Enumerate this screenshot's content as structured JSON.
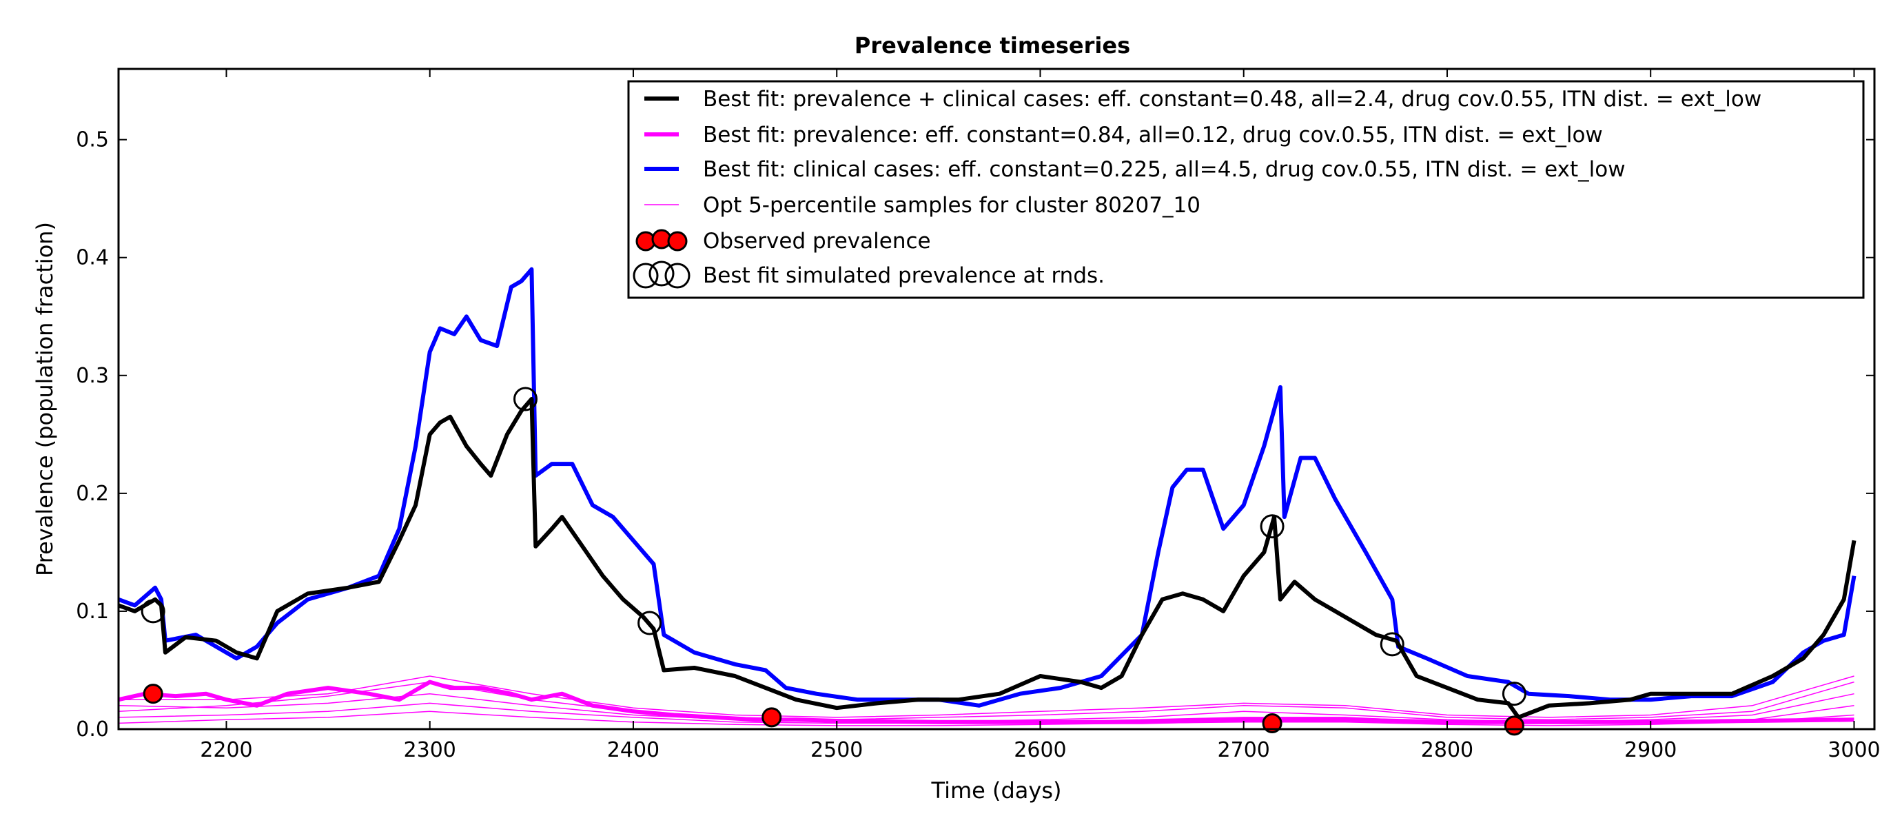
{
  "chart_data": {
    "type": "line",
    "title": "Prevalence timeseries",
    "xlabel": "Time (days)",
    "ylabel": "Prevalence (population fraction)",
    "xlim": [
      2147,
      3010
    ],
    "ylim": [
      0.0,
      0.56
    ],
    "xticks": [
      2200,
      2300,
      2400,
      2500,
      2600,
      2700,
      2800,
      2900,
      3000
    ],
    "yticks": [
      0.0,
      0.1,
      0.2,
      0.3,
      0.4,
      0.5
    ],
    "xtick_labels": [
      "2200",
      "2300",
      "2400",
      "2500",
      "2600",
      "2700",
      "2800",
      "2900",
      "3000"
    ],
    "ytick_labels": [
      "0.0",
      "0.1",
      "0.2",
      "0.3",
      "0.4",
      "0.5"
    ],
    "grid": false,
    "legend_position": "top-right",
    "series": [
      {
        "name": "Best fit: prevalence + clinical cases: eff. constant=0.48, all=2.4, drug cov.0.55, ITN dist. = ext_low",
        "color": "#000000",
        "style": "thick-line",
        "points": [
          [
            2147,
            0.105
          ],
          [
            2155,
            0.1
          ],
          [
            2165,
            0.11
          ],
          [
            2168,
            0.105
          ],
          [
            2170,
            0.065
          ],
          [
            2180,
            0.078
          ],
          [
            2195,
            0.075
          ],
          [
            2205,
            0.065
          ],
          [
            2215,
            0.06
          ],
          [
            2225,
            0.1
          ],
          [
            2240,
            0.115
          ],
          [
            2260,
            0.12
          ],
          [
            2275,
            0.125
          ],
          [
            2285,
            0.16
          ],
          [
            2293,
            0.19
          ],
          [
            2300,
            0.25
          ],
          [
            2305,
            0.26
          ],
          [
            2310,
            0.265
          ],
          [
            2318,
            0.24
          ],
          [
            2325,
            0.225
          ],
          [
            2330,
            0.215
          ],
          [
            2338,
            0.25
          ],
          [
            2345,
            0.27
          ],
          [
            2350,
            0.28
          ],
          [
            2352,
            0.155
          ],
          [
            2360,
            0.17
          ],
          [
            2365,
            0.18
          ],
          [
            2375,
            0.155
          ],
          [
            2385,
            0.13
          ],
          [
            2395,
            0.11
          ],
          [
            2405,
            0.095
          ],
          [
            2410,
            0.085
          ],
          [
            2415,
            0.05
          ],
          [
            2430,
            0.052
          ],
          [
            2450,
            0.045
          ],
          [
            2465,
            0.035
          ],
          [
            2480,
            0.025
          ],
          [
            2500,
            0.018
          ],
          [
            2520,
            0.022
          ],
          [
            2540,
            0.025
          ],
          [
            2560,
            0.025
          ],
          [
            2580,
            0.03
          ],
          [
            2600,
            0.045
          ],
          [
            2620,
            0.04
          ],
          [
            2630,
            0.035
          ],
          [
            2640,
            0.045
          ],
          [
            2650,
            0.08
          ],
          [
            2660,
            0.11
          ],
          [
            2670,
            0.115
          ],
          [
            2680,
            0.11
          ],
          [
            2690,
            0.1
          ],
          [
            2700,
            0.13
          ],
          [
            2710,
            0.15
          ],
          [
            2715,
            0.18
          ],
          [
            2718,
            0.11
          ],
          [
            2725,
            0.125
          ],
          [
            2735,
            0.11
          ],
          [
            2745,
            0.1
          ],
          [
            2755,
            0.09
          ],
          [
            2765,
            0.08
          ],
          [
            2775,
            0.075
          ],
          [
            2785,
            0.045
          ],
          [
            2800,
            0.035
          ],
          [
            2815,
            0.025
          ],
          [
            2830,
            0.022
          ],
          [
            2835,
            0.01
          ],
          [
            2850,
            0.02
          ],
          [
            2870,
            0.022
          ],
          [
            2890,
            0.025
          ],
          [
            2900,
            0.03
          ],
          [
            2920,
            0.03
          ],
          [
            2940,
            0.03
          ],
          [
            2960,
            0.045
          ],
          [
            2975,
            0.06
          ],
          [
            2985,
            0.08
          ],
          [
            2995,
            0.11
          ],
          [
            3000,
            0.16
          ]
        ]
      },
      {
        "name": "Best fit: prevalence: eff. constant=0.84, all=0.12, drug cov.0.55, ITN dist. = ext_low",
        "color": "#ff00ff",
        "style": "thick-line",
        "points": [
          [
            2147,
            0.025
          ],
          [
            2160,
            0.03
          ],
          [
            2175,
            0.028
          ],
          [
            2190,
            0.03
          ],
          [
            2200,
            0.025
          ],
          [
            2215,
            0.02
          ],
          [
            2230,
            0.03
          ],
          [
            2250,
            0.035
          ],
          [
            2270,
            0.03
          ],
          [
            2285,
            0.025
          ],
          [
            2300,
            0.04
          ],
          [
            2310,
            0.035
          ],
          [
            2325,
            0.035
          ],
          [
            2340,
            0.03
          ],
          [
            2350,
            0.025
          ],
          [
            2365,
            0.03
          ],
          [
            2380,
            0.02
          ],
          [
            2400,
            0.015
          ],
          [
            2420,
            0.012
          ],
          [
            2440,
            0.01
          ],
          [
            2460,
            0.008
          ],
          [
            2480,
            0.008
          ],
          [
            2500,
            0.007
          ],
          [
            2550,
            0.006
          ],
          [
            2600,
            0.006
          ],
          [
            2650,
            0.006
          ],
          [
            2700,
            0.008
          ],
          [
            2750,
            0.008
          ],
          [
            2800,
            0.006
          ],
          [
            2850,
            0.006
          ],
          [
            2900,
            0.006
          ],
          [
            2950,
            0.007
          ],
          [
            3000,
            0.008
          ]
        ]
      },
      {
        "name": "Best fit: clinical cases: eff. constant=0.225, all=4.5, drug cov.0.55, ITN dist. = ext_low",
        "color": "#0000ff",
        "style": "thick-line",
        "points": [
          [
            2147,
            0.11
          ],
          [
            2155,
            0.105
          ],
          [
            2165,
            0.12
          ],
          [
            2168,
            0.11
          ],
          [
            2170,
            0.075
          ],
          [
            2185,
            0.08
          ],
          [
            2195,
            0.07
          ],
          [
            2205,
            0.06
          ],
          [
            2215,
            0.07
          ],
          [
            2225,
            0.09
          ],
          [
            2240,
            0.11
          ],
          [
            2260,
            0.12
          ],
          [
            2275,
            0.13
          ],
          [
            2285,
            0.17
          ],
          [
            2293,
            0.24
          ],
          [
            2300,
            0.32
          ],
          [
            2305,
            0.34
          ],
          [
            2312,
            0.335
          ],
          [
            2318,
            0.35
          ],
          [
            2325,
            0.33
          ],
          [
            2333,
            0.325
          ],
          [
            2340,
            0.375
          ],
          [
            2345,
            0.38
          ],
          [
            2350,
            0.39
          ],
          [
            2352,
            0.215
          ],
          [
            2360,
            0.225
          ],
          [
            2370,
            0.225
          ],
          [
            2380,
            0.19
          ],
          [
            2390,
            0.18
          ],
          [
            2400,
            0.16
          ],
          [
            2410,
            0.14
          ],
          [
            2415,
            0.08
          ],
          [
            2430,
            0.065
          ],
          [
            2450,
            0.055
          ],
          [
            2465,
            0.05
          ],
          [
            2475,
            0.035
          ],
          [
            2490,
            0.03
          ],
          [
            2510,
            0.025
          ],
          [
            2530,
            0.025
          ],
          [
            2550,
            0.025
          ],
          [
            2570,
            0.02
          ],
          [
            2590,
            0.03
          ],
          [
            2610,
            0.035
          ],
          [
            2630,
            0.045
          ],
          [
            2650,
            0.08
          ],
          [
            2658,
            0.15
          ],
          [
            2665,
            0.205
          ],
          [
            2672,
            0.22
          ],
          [
            2680,
            0.22
          ],
          [
            2690,
            0.17
          ],
          [
            2700,
            0.19
          ],
          [
            2710,
            0.24
          ],
          [
            2718,
            0.29
          ],
          [
            2720,
            0.18
          ],
          [
            2728,
            0.23
          ],
          [
            2735,
            0.23
          ],
          [
            2745,
            0.195
          ],
          [
            2760,
            0.15
          ],
          [
            2773,
            0.11
          ],
          [
            2776,
            0.07
          ],
          [
            2790,
            0.06
          ],
          [
            2810,
            0.045
          ],
          [
            2830,
            0.04
          ],
          [
            2840,
            0.03
          ],
          [
            2860,
            0.028
          ],
          [
            2880,
            0.025
          ],
          [
            2900,
            0.025
          ],
          [
            2920,
            0.028
          ],
          [
            2940,
            0.028
          ],
          [
            2960,
            0.04
          ],
          [
            2975,
            0.065
          ],
          [
            2985,
            0.075
          ],
          [
            2995,
            0.08
          ],
          [
            3000,
            0.13
          ]
        ]
      }
    ],
    "samples": {
      "name": "Opt 5-percentile samples for cluster 80207_10",
      "color": "#ff00ff",
      "style": "thin-lines",
      "lines": [
        [
          [
            2147,
            0.02
          ],
          [
            2200,
            0.018
          ],
          [
            2250,
            0.022
          ],
          [
            2300,
            0.03
          ],
          [
            2350,
            0.02
          ],
          [
            2400,
            0.012
          ],
          [
            2450,
            0.008
          ],
          [
            2500,
            0.006
          ],
          [
            2550,
            0.006
          ],
          [
            2600,
            0.008
          ],
          [
            2650,
            0.01
          ],
          [
            2700,
            0.015
          ],
          [
            2750,
            0.012
          ],
          [
            2800,
            0.008
          ],
          [
            2850,
            0.006
          ],
          [
            2900,
            0.008
          ],
          [
            2950,
            0.012
          ],
          [
            3000,
            0.03
          ]
        ],
        [
          [
            2147,
            0.015
          ],
          [
            2200,
            0.02
          ],
          [
            2250,
            0.028
          ],
          [
            2300,
            0.04
          ],
          [
            2350,
            0.025
          ],
          [
            2400,
            0.015
          ],
          [
            2450,
            0.01
          ],
          [
            2500,
            0.008
          ],
          [
            2550,
            0.01
          ],
          [
            2600,
            0.012
          ],
          [
            2650,
            0.015
          ],
          [
            2700,
            0.02
          ],
          [
            2750,
            0.018
          ],
          [
            2800,
            0.01
          ],
          [
            2850,
            0.008
          ],
          [
            2900,
            0.01
          ],
          [
            2950,
            0.015
          ],
          [
            3000,
            0.04
          ]
        ],
        [
          [
            2147,
            0.01
          ],
          [
            2200,
            0.012
          ],
          [
            2250,
            0.015
          ],
          [
            2300,
            0.022
          ],
          [
            2350,
            0.015
          ],
          [
            2400,
            0.01
          ],
          [
            2450,
            0.006
          ],
          [
            2500,
            0.005
          ],
          [
            2550,
            0.005
          ],
          [
            2600,
            0.006
          ],
          [
            2650,
            0.008
          ],
          [
            2700,
            0.01
          ],
          [
            2750,
            0.01
          ],
          [
            2800,
            0.006
          ],
          [
            2850,
            0.005
          ],
          [
            2900,
            0.006
          ],
          [
            2950,
            0.008
          ],
          [
            3000,
            0.02
          ]
        ],
        [
          [
            2147,
            0.025
          ],
          [
            2200,
            0.025
          ],
          [
            2250,
            0.03
          ],
          [
            2300,
            0.045
          ],
          [
            2350,
            0.03
          ],
          [
            2400,
            0.018
          ],
          [
            2450,
            0.012
          ],
          [
            2500,
            0.01
          ],
          [
            2550,
            0.012
          ],
          [
            2600,
            0.015
          ],
          [
            2650,
            0.018
          ],
          [
            2700,
            0.022
          ],
          [
            2750,
            0.02
          ],
          [
            2800,
            0.012
          ],
          [
            2850,
            0.01
          ],
          [
            2900,
            0.012
          ],
          [
            2950,
            0.02
          ],
          [
            3000,
            0.045
          ]
        ],
        [
          [
            2147,
            0.005
          ],
          [
            2200,
            0.008
          ],
          [
            2250,
            0.01
          ],
          [
            2300,
            0.015
          ],
          [
            2350,
            0.01
          ],
          [
            2400,
            0.006
          ],
          [
            2450,
            0.004
          ],
          [
            2500,
            0.003
          ],
          [
            2550,
            0.003
          ],
          [
            2600,
            0.004
          ],
          [
            2650,
            0.005
          ],
          [
            2700,
            0.006
          ],
          [
            2750,
            0.006
          ],
          [
            2800,
            0.004
          ],
          [
            2850,
            0.003
          ],
          [
            2900,
            0.004
          ],
          [
            2950,
            0.006
          ],
          [
            3000,
            0.012
          ]
        ]
      ]
    },
    "observed": {
      "name": "Observed prevalence",
      "color": "#ff0000",
      "points": [
        [
          2164,
          0.03
        ],
        [
          2468,
          0.01
        ],
        [
          2714,
          0.005
        ],
        [
          2833,
          0.003
        ]
      ]
    },
    "simulated_at_rounds": {
      "name": "Best fit simulated prevalence at rnds.",
      "points": [
        [
          2164,
          0.1
        ],
        [
          2347,
          0.28
        ],
        [
          2408,
          0.09
        ],
        [
          2714,
          0.172
        ],
        [
          2773,
          0.072
        ],
        [
          2833,
          0.03
        ]
      ]
    }
  }
}
